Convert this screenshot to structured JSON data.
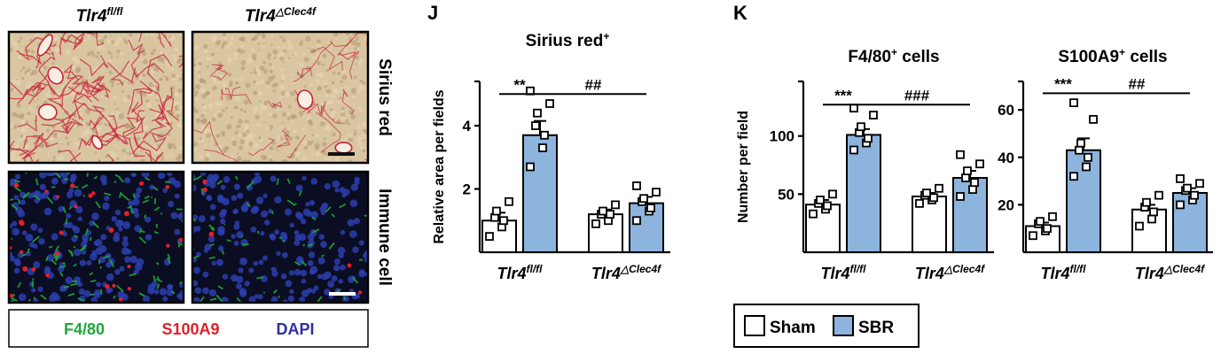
{
  "micrographs": {
    "col_labels": [
      {
        "base": "Tlr4",
        "sup": "fl/fl"
      },
      {
        "base": "Tlr4",
        "sup": "△Clec4f"
      }
    ],
    "row_labels": [
      "Sirius red",
      "Immune cell"
    ],
    "stain_legend": [
      {
        "label": "F4/80",
        "color": "#1fa838"
      },
      {
        "label": "S100A9",
        "color": "#e0202a"
      },
      {
        "label": "DAPI",
        "color": "#3030a0"
      }
    ],
    "colors": {
      "sirius_bg": "#d9c6a0",
      "sirius_stain": "#c8203c",
      "if_bg": "#0b0d22"
    }
  },
  "group_legend": [
    {
      "label": "Sham",
      "color": "#ffffff"
    },
    {
      "label": "SBR",
      "color": "#8db4dc"
    }
  ],
  "chart_data": [
    {
      "type": "bar",
      "panel_letter": "J",
      "title": {
        "base": "Sirius red",
        "sup": "+"
      },
      "ylabel": "Relative area per fields",
      "categories": [
        {
          "base": "Tlr4",
          "sup": "fl/fl"
        },
        {
          "base": "Tlr4",
          "sup": "△Clec4f"
        }
      ],
      "ylim": [
        0,
        5.4
      ],
      "yticks": [
        2,
        4
      ],
      "series": [
        {
          "name": "Sham",
          "values": [
            1.0,
            1.2
          ],
          "errors": [
            0.25,
            0.15
          ],
          "points": [
            [
              0.5,
              0.8,
              1.0,
              1.1,
              1.3,
              1.6
            ],
            [
              0.9,
              1.0,
              1.2,
              1.2,
              1.3,
              1.5
            ]
          ]
        },
        {
          "name": "SBR",
          "values": [
            3.7,
            1.55
          ],
          "errors": [
            0.45,
            0.2
          ],
          "points": [
            [
              2.7,
              3.3,
              3.7,
              4.0,
              4.4,
              4.7,
              5.1
            ],
            [
              1.0,
              1.3,
              1.4,
              1.6,
              1.7,
              1.9,
              2.1
            ]
          ]
        }
      ],
      "significance": [
        {
          "label": "**",
          "from": [
            0,
            0
          ],
          "to": [
            0,
            1
          ],
          "y": 5.0
        },
        {
          "label": "##",
          "from": [
            0,
            1
          ],
          "to": [
            1,
            1
          ],
          "y": 5.0
        }
      ]
    },
    {
      "type": "bar",
      "panel_letter": "K",
      "title": {
        "base": "F4/80",
        "sup": "+",
        "rest": " cells"
      },
      "ylabel": "Number per field",
      "categories": [
        {
          "base": "Tlr4",
          "sup": "fl/fl"
        },
        {
          "base": "Tlr4",
          "sup": "△Clec4f"
        }
      ],
      "ylim": [
        0,
        147
      ],
      "yticks": [
        50,
        100
      ],
      "series": [
        {
          "name": "Sham",
          "values": [
            41,
            48
          ],
          "errors": [
            4,
            3
          ],
          "points": [
            [
              33,
              37,
              40,
              42,
              45,
              50
            ],
            [
              42,
              45,
              47,
              49,
              51,
              55
            ]
          ]
        },
        {
          "name": "SBR",
          "values": [
            101,
            64
          ],
          "errors": [
            5,
            6
          ],
          "points": [
            [
              88,
              94,
              98,
              103,
              108,
              118,
              124
            ],
            [
              48,
              54,
              60,
              64,
              70,
              76,
              84
            ]
          ]
        }
      ],
      "significance": [
        {
          "label": "***",
          "from": [
            0,
            0
          ],
          "to": [
            0,
            1
          ],
          "y": 127
        },
        {
          "label": "###",
          "from": [
            0,
            1
          ],
          "to": [
            1,
            1
          ],
          "y": 127
        }
      ]
    },
    {
      "type": "bar",
      "title": {
        "base": "S100A9",
        "sup": "+",
        "rest": " cells"
      },
      "ylabel": "",
      "categories": [
        {
          "base": "Tlr4",
          "sup": "fl/fl"
        },
        {
          "base": "Tlr4",
          "sup": "△Clec4f"
        }
      ],
      "ylim": [
        0,
        72
      ],
      "yticks": [
        20,
        40,
        60
      ],
      "series": [
        {
          "name": "Sham",
          "values": [
            11,
            18
          ],
          "errors": [
            1.5,
            2
          ],
          "points": [
            [
              7,
              9,
              10,
              12,
              13,
              15
            ],
            [
              11,
              14,
              17,
              19,
              21,
              24
            ]
          ]
        },
        {
          "name": "SBR",
          "values": [
            43,
            25
          ],
          "errors": [
            5,
            2
          ],
          "points": [
            [
              32,
              36,
              40,
              43,
              46,
              56,
              63
            ],
            [
              20,
              22,
              24,
              26,
              27,
              29,
              31
            ]
          ]
        }
      ],
      "significance": [
        {
          "label": "***",
          "from": [
            0,
            0
          ],
          "to": [
            0,
            1
          ],
          "y": 67
        },
        {
          "label": "##",
          "from": [
            0,
            1
          ],
          "to": [
            1,
            1
          ],
          "y": 67
        }
      ]
    }
  ]
}
